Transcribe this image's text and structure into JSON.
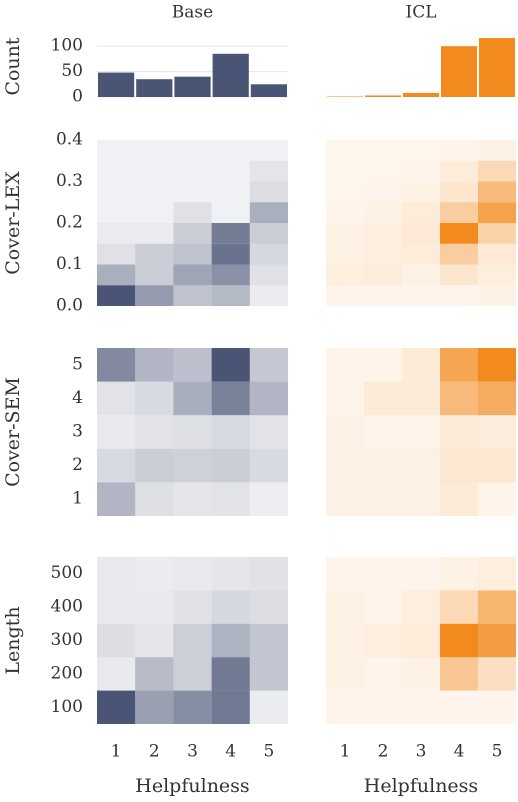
{
  "chart_data": [
    {
      "type": "bar",
      "title": "Base",
      "ylabel": "Count",
      "values": [
        48,
        35,
        40,
        85,
        25
      ],
      "color": "#4a5575",
      "ylim": [
        0,
        120
      ],
      "yticks": [
        0,
        50,
        100
      ],
      "grid": true
    },
    {
      "type": "bar",
      "title": "ICL",
      "values": [
        1,
        3,
        8,
        100,
        116
      ],
      "color": "#f28a1e",
      "ylim": [
        0,
        120
      ]
    },
    {
      "type": "heatmap",
      "ylabel": "Cover-LEX",
      "color": "#4a5575",
      "ylim": [
        0,
        0.4
      ],
      "ybins": [
        0,
        0.05,
        0.1,
        0.15,
        0.2,
        0.25,
        0.3,
        0.35,
        0.4
      ],
      "yticks": [
        {
          "value": 0,
          "label": "0.0"
        },
        0.1,
        0.2,
        0.3,
        0.4
      ],
      "values": [
        [
          80,
          45,
          25,
          30,
          5
        ],
        [
          35,
          20,
          40,
          50,
          10
        ],
        [
          10,
          20,
          25,
          65,
          15
        ],
        [
          5,
          5,
          20,
          60,
          20
        ],
        [
          2,
          2,
          10,
          2,
          35
        ],
        [
          2,
          2,
          2,
          2,
          12
        ],
        [
          2,
          2,
          2,
          2,
          8
        ],
        [
          2,
          2,
          2,
          2,
          2
        ]
      ]
    },
    {
      "type": "heatmap",
      "color": "#f28a1e",
      "ylim": [
        0,
        0.4
      ],
      "ybins": [
        0,
        0.05,
        0.1,
        0.15,
        0.2,
        0.25,
        0.3,
        0.35,
        0.4
      ],
      "values": [
        [
          3,
          3,
          3,
          3,
          5
        ],
        [
          8,
          10,
          5,
          15,
          8
        ],
        [
          5,
          8,
          10,
          35,
          12
        ],
        [
          5,
          8,
          12,
          90,
          30
        ],
        [
          3,
          5,
          10,
          35,
          70
        ],
        [
          2,
          3,
          5,
          15,
          50
        ],
        [
          2,
          2,
          3,
          10,
          25
        ],
        [
          2,
          2,
          2,
          3,
          5
        ]
      ]
    },
    {
      "type": "heatmap",
      "ylabel": "Cover-SEM",
      "color": "#4a5575",
      "yticks": [
        1,
        2,
        3,
        4,
        5
      ],
      "values": [
        [
          35,
          12,
          8,
          10,
          4
        ],
        [
          15,
          22,
          20,
          22,
          15
        ],
        [
          6,
          10,
          12,
          15,
          10
        ],
        [
          10,
          15,
          40,
          65,
          35
        ],
        [
          60,
          35,
          30,
          90,
          25
        ]
      ]
    },
    {
      "type": "heatmap",
      "color": "#f28a1e",
      "values": [
        [
          5,
          5,
          5,
          10,
          3
        ],
        [
          5,
          5,
          5,
          12,
          12
        ],
        [
          5,
          3,
          3,
          10,
          8
        ],
        [
          3,
          10,
          10,
          45,
          55
        ],
        [
          3,
          3,
          10,
          60,
          80
        ]
      ]
    },
    {
      "type": "heatmap",
      "ylabel": "Length",
      "xlabel": "Helpfulness",
      "color": "#4a5575",
      "yticks": [
        100,
        200,
        300,
        400,
        500
      ],
      "xticks": [
        1,
        2,
        3,
        4,
        5
      ],
      "values": [
        [
          85,
          45,
          55,
          65,
          5
        ],
        [
          6,
          30,
          20,
          65,
          25
        ],
        [
          12,
          8,
          20,
          35,
          25
        ],
        [
          6,
          6,
          10,
          15,
          12
        ],
        [
          6,
          5,
          6,
          8,
          10
        ]
      ]
    },
    {
      "type": "heatmap",
      "xlabel": "Helpfulness",
      "color": "#f28a1e",
      "xticks": [
        1,
        2,
        3,
        4,
        5
      ],
      "values": [
        [
          3,
          3,
          3,
          3,
          3
        ],
        [
          5,
          3,
          5,
          40,
          20
        ],
        [
          5,
          8,
          10,
          90,
          75
        ],
        [
          5,
          3,
          8,
          25,
          55
        ],
        [
          3,
          3,
          3,
          5,
          8
        ]
      ]
    }
  ]
}
